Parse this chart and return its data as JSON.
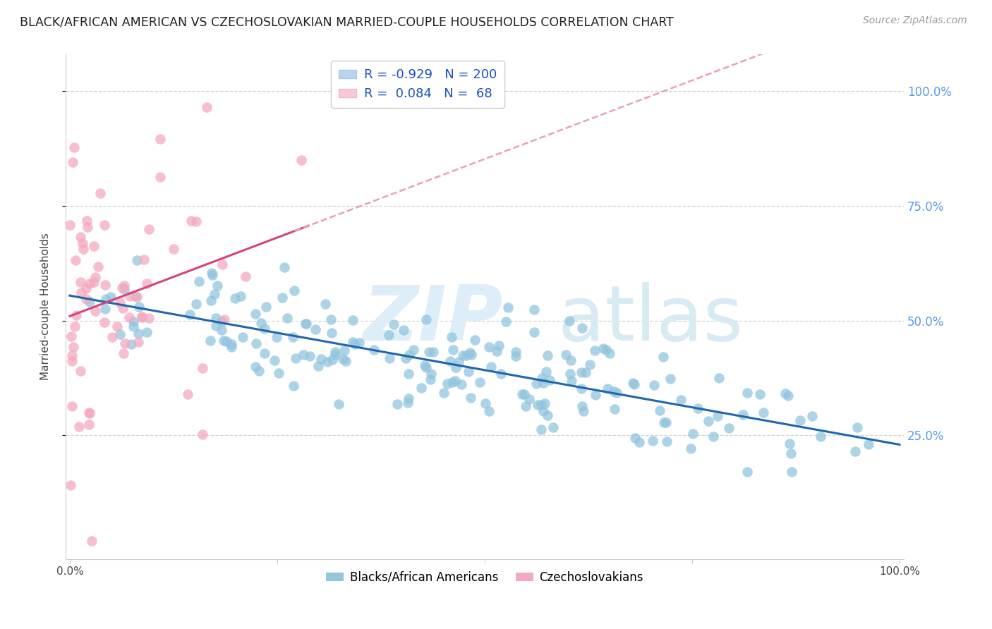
{
  "title": "BLACK/AFRICAN AMERICAN VS CZECHOSLOVAKIAN MARRIED-COUPLE HOUSEHOLDS CORRELATION CHART",
  "source": "Source: ZipAtlas.com",
  "ylabel": "Married-couple Households",
  "legend_label1": "Blacks/African Americans",
  "legend_label2": "Czechoslovakians",
  "R1": -0.929,
  "N1": 200,
  "R2": 0.084,
  "N2": 68,
  "blue_color": "#92c5de",
  "blue_line_color": "#2166ac",
  "pink_color": "#f4a9be",
  "pink_line_color": "#d6437a",
  "pink_dash_color": "#e8a0b8",
  "background_color": "#ffffff",
  "grid_color": "#d0d0d0",
  "title_color": "#222222",
  "source_color": "#999999",
  "right_tick_color": "#5599ee",
  "watermark_zip_color": "#d8e8f0",
  "watermark_atlas_color": "#dde8ee",
  "ylabel_right_ticks": [
    "100.0%",
    "75.0%",
    "50.0%",
    "25.0%"
  ],
  "ylabel_right_values": [
    1.0,
    0.75,
    0.5,
    0.25
  ],
  "seed": 42
}
